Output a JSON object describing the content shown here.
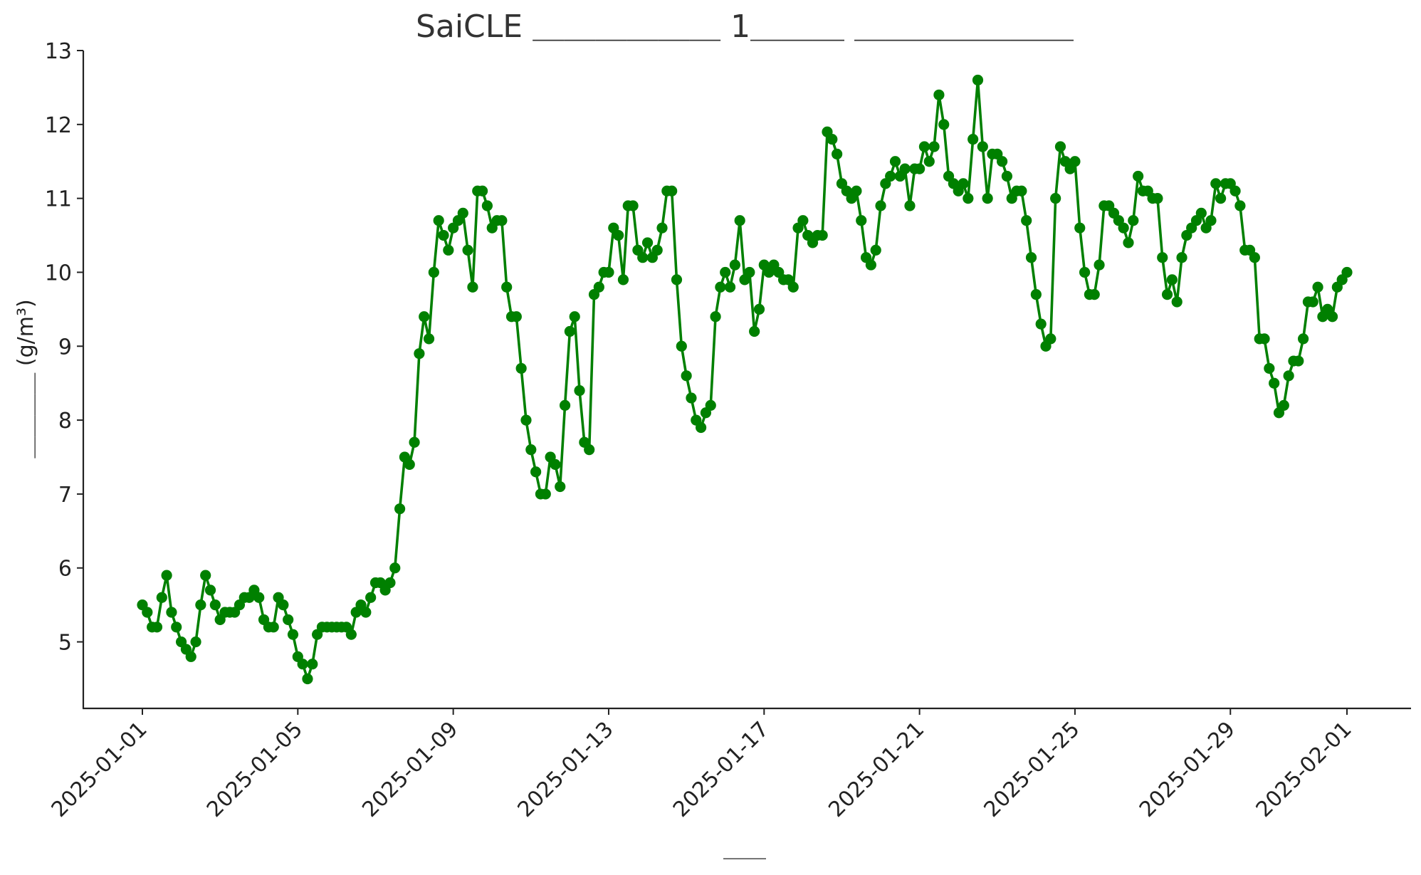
{
  "chart_data": {
    "type": "line",
    "title": "SaiCLE ＿＿＿＿＿＿ 1＿＿＿ ＿＿＿＿＿＿＿",
    "xlabel": "＿＿",
    "ylabel": "＿＿＿＿ (g/m³)",
    "ylim": [
      4.1,
      13
    ],
    "yticks": [
      5,
      6,
      7,
      8,
      9,
      10,
      11,
      12,
      13
    ],
    "x_start": "2025-01-01",
    "x_end": "2025-02-01",
    "xtick_labels": [
      "2025-01-01",
      "2025-01-05",
      "2025-01-09",
      "2025-01-13",
      "2025-01-17",
      "2025-01-21",
      "2025-01-25",
      "2025-01-29",
      "2025-02-01"
    ],
    "color": "#008000",
    "grid": false,
    "legend": "none",
    "series": [
      {
        "values": [
          5.5,
          5.4,
          5.2,
          5.2,
          5.6,
          5.9,
          5.4,
          5.2,
          5.0,
          4.9,
          4.8,
          5.0,
          5.5,
          5.9,
          5.7,
          5.5,
          5.3,
          5.4,
          5.4,
          5.4,
          5.5,
          5.6,
          5.6,
          5.7,
          5.6,
          5.3,
          5.2,
          5.2,
          5.6,
          5.5,
          5.3,
          5.1,
          4.8,
          4.7,
          4.5,
          4.7,
          5.1,
          5.2,
          5.2,
          5.2,
          5.2,
          5.2,
          5.2,
          5.1,
          5.4,
          5.5,
          5.4,
          5.6,
          5.8,
          5.8,
          5.7,
          5.8,
          6.0,
          6.8,
          7.5,
          7.4,
          7.7,
          8.9,
          9.4,
          9.1,
          10.0,
          10.7,
          10.5,
          10.3,
          10.6,
          10.7,
          10.8,
          10.3,
          9.8,
          11.1,
          11.1,
          10.9,
          10.6,
          10.7,
          10.7,
          9.8,
          9.4,
          9.4,
          8.7,
          8.0,
          7.6,
          7.3,
          7.0,
          7.0,
          7.5,
          7.4,
          7.1,
          8.2,
          9.2,
          9.4,
          8.4,
          7.7,
          7.6,
          9.7,
          9.8,
          10.0,
          10.0,
          10.6,
          10.5,
          9.9,
          10.9,
          10.9,
          10.3,
          10.2,
          10.4,
          10.2,
          10.3,
          10.6,
          11.1,
          11.1,
          9.9,
          9.0,
          8.6,
          8.3,
          8.0,
          7.9,
          8.1,
          8.2,
          9.4,
          9.8,
          10.0,
          9.8,
          10.1,
          10.7,
          9.9,
          10.0,
          9.2,
          9.5,
          10.1,
          10.0,
          10.1,
          10.0,
          9.9,
          9.9,
          9.8,
          10.6,
          10.7,
          10.5,
          10.4,
          10.5,
          10.5,
          11.9,
          11.8,
          11.6,
          11.2,
          11.1,
          11.0,
          11.1,
          10.7,
          10.2,
          10.1,
          10.3,
          10.9,
          11.2,
          11.3,
          11.5,
          11.3,
          11.4,
          10.9,
          11.4,
          11.4,
          11.7,
          11.5,
          11.7,
          12.4,
          12.0,
          11.3,
          11.2,
          11.1,
          11.2,
          11.0,
          11.8,
          12.6,
          11.7,
          11.0,
          11.6,
          11.6,
          11.5,
          11.3,
          11.0,
          11.1,
          11.1,
          10.7,
          10.2,
          9.7,
          9.3,
          9.0,
          9.1,
          11.0,
          11.7,
          11.5,
          11.4,
          11.5,
          10.6,
          10.0,
          9.7,
          9.7,
          10.1,
          10.9,
          10.9,
          10.8,
          10.7,
          10.6,
          10.4,
          10.7,
          11.3,
          11.1,
          11.1,
          11.0,
          11.0,
          10.2,
          9.7,
          9.9,
          9.6,
          10.2,
          10.5,
          10.6,
          10.7,
          10.8,
          10.6,
          10.7,
          11.2,
          11.0,
          11.2,
          11.2,
          11.1,
          10.9,
          10.3,
          10.3,
          10.2,
          9.1,
          9.1,
          8.7,
          8.5,
          8.1,
          8.2,
          8.6,
          8.8,
          8.8,
          9.1,
          9.6,
          9.6,
          9.8,
          9.4,
          9.5,
          9.4,
          9.8,
          9.9,
          10.0
        ]
      }
    ]
  }
}
